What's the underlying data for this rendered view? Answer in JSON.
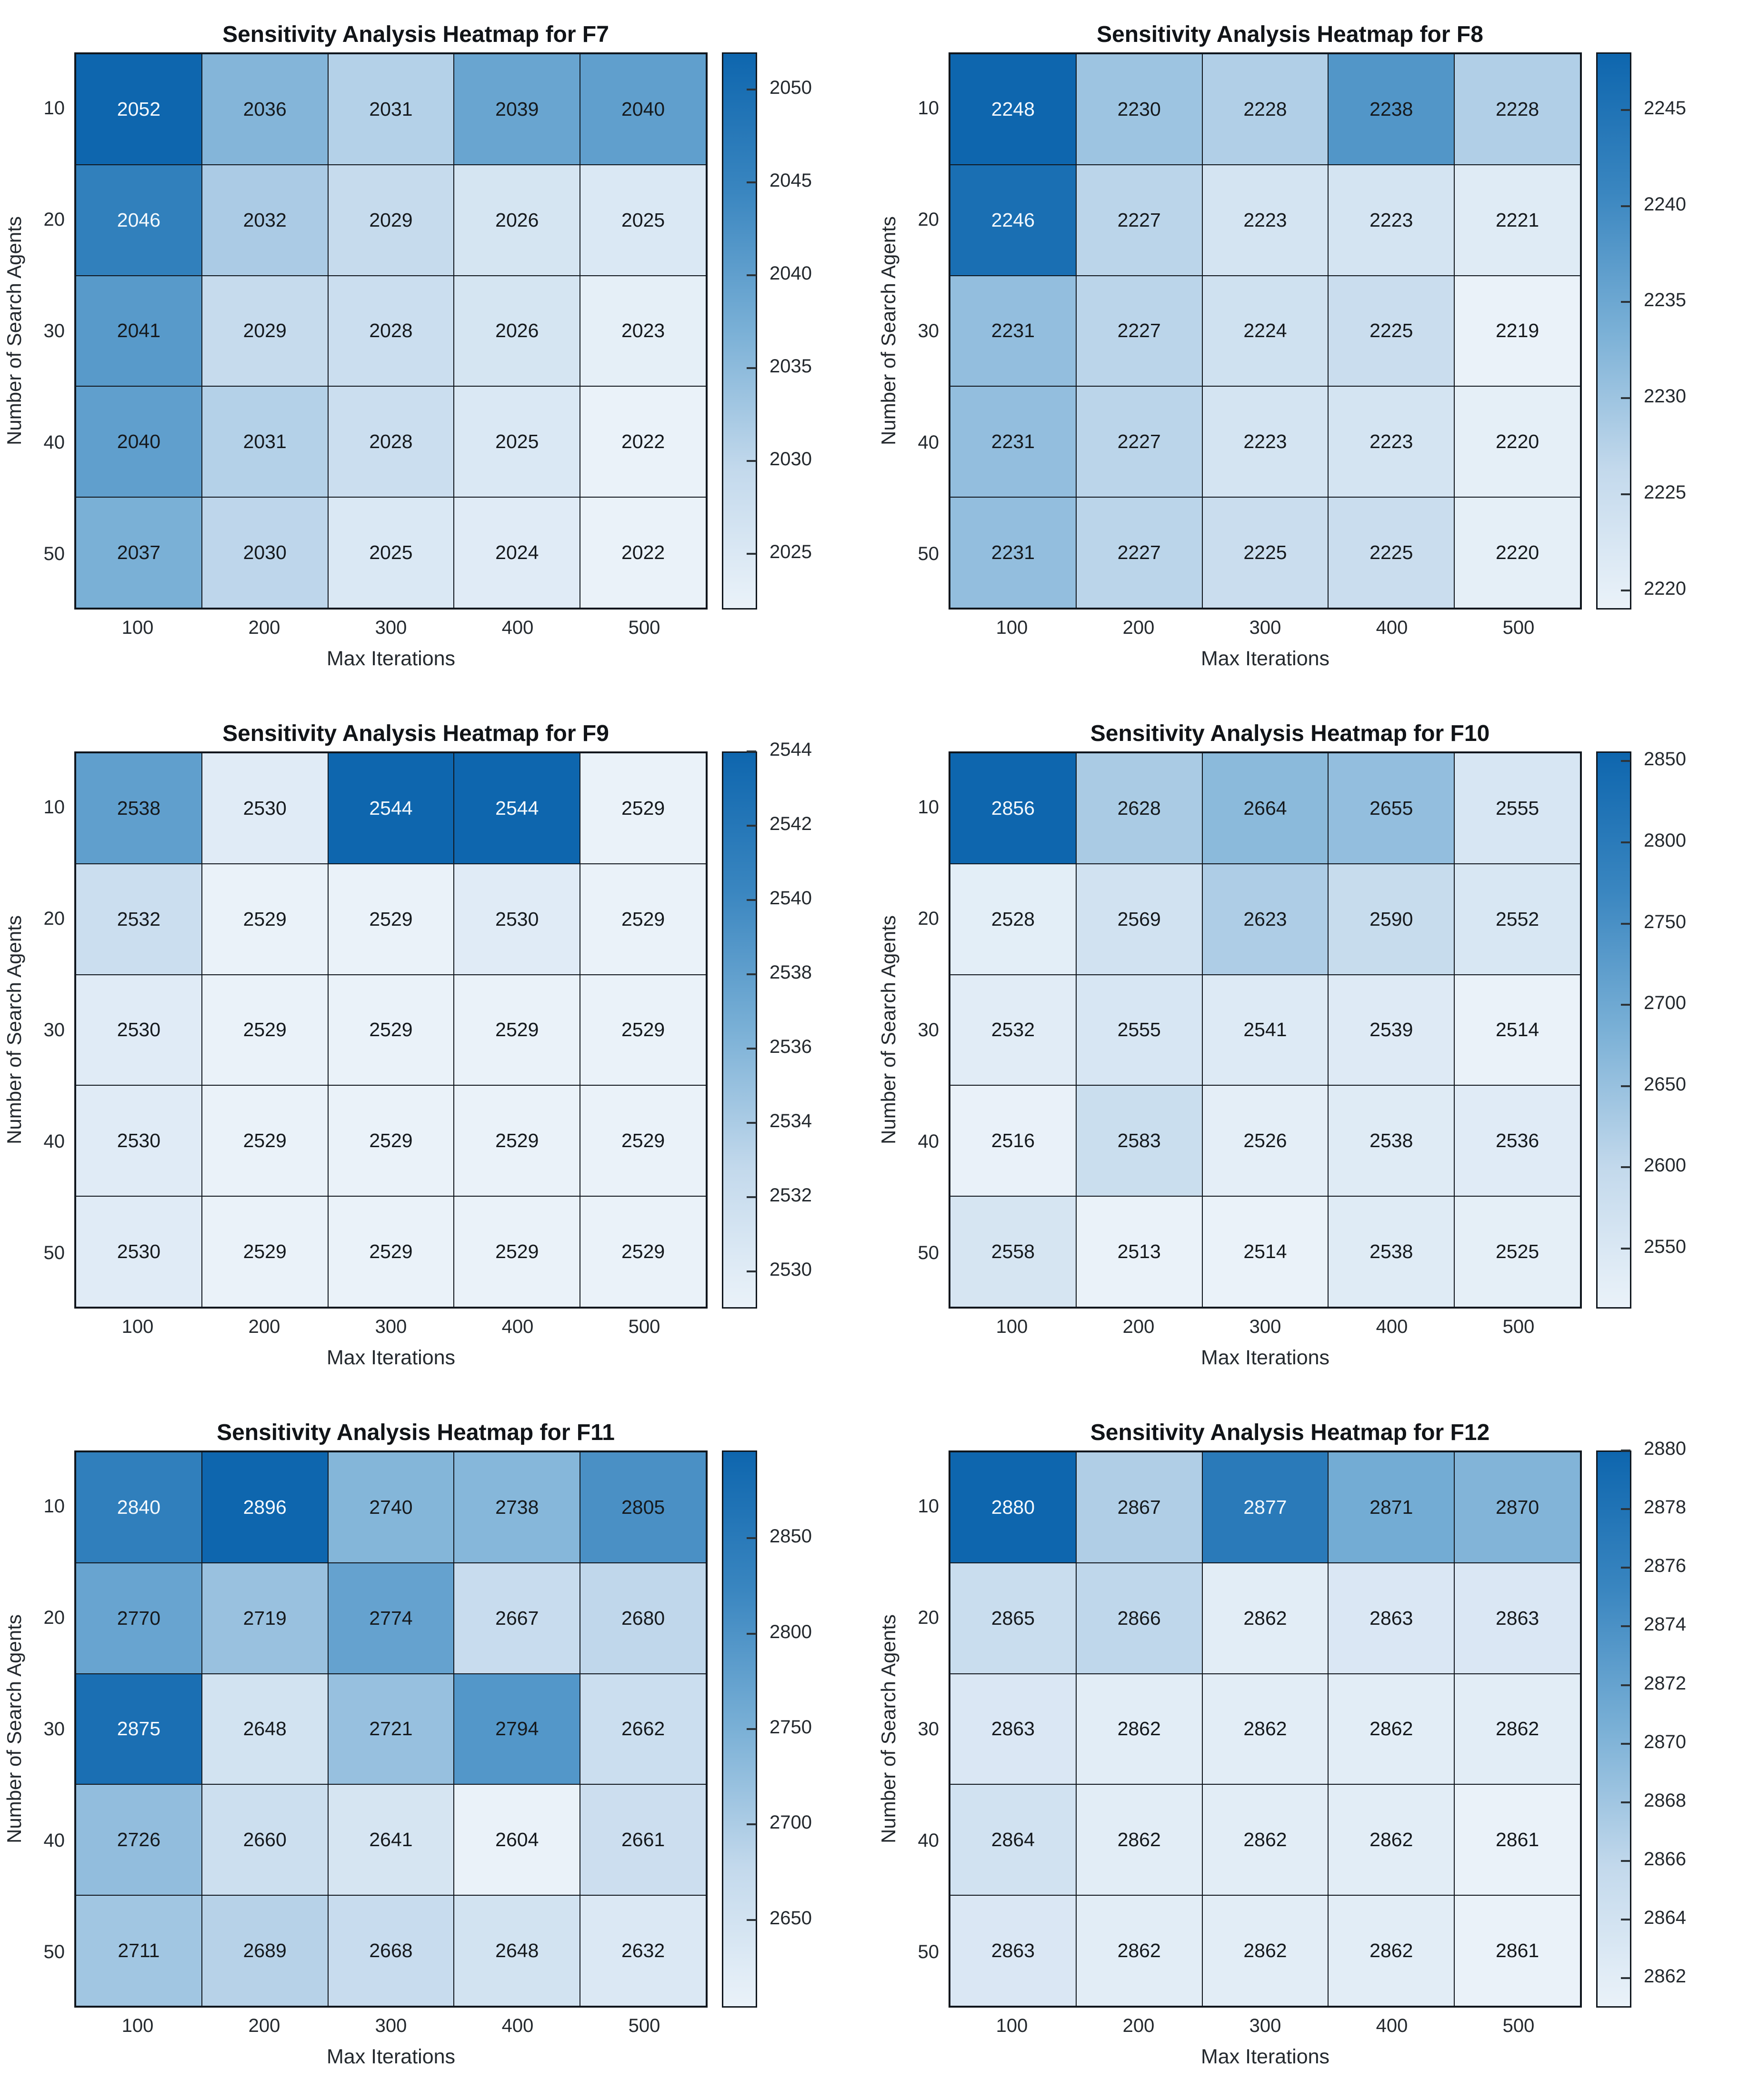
{
  "figure": {
    "background": "#ffffff",
    "colormap": {
      "low": "#eaf2f9",
      "q1": "#c3d9ec",
      "mid": "#7ab0d6",
      "q3": "#3a86c0",
      "high": "#0e66ae",
      "white_text_threshold": 0.75
    },
    "cell_border_color": "#10161d",
    "dark_text_color": "#15191d",
    "light_text_color": "#f4f9fd"
  },
  "chart_data": [
    {
      "type": "heatmap",
      "title": "Sensitivity Analysis Heatmap for F7",
      "xlabel": "Max Iterations",
      "ylabel": "Number of Search Agents",
      "x_categories": [
        "100",
        "200",
        "300",
        "400",
        "500"
      ],
      "y_categories": [
        "10",
        "20",
        "30",
        "40",
        "50"
      ],
      "values": [
        [
          2052,
          2036,
          2031,
          2039,
          2040
        ],
        [
          2046,
          2032,
          2029,
          2026,
          2025
        ],
        [
          2041,
          2029,
          2028,
          2026,
          2023
        ],
        [
          2040,
          2031,
          2028,
          2025,
          2022
        ],
        [
          2037,
          2030,
          2025,
          2024,
          2022
        ]
      ],
      "vmin": 2022,
      "vmax": 2052,
      "colorbar_ticks": [
        2025,
        2030,
        2035,
        2040,
        2045,
        2050
      ],
      "legend_position": "right",
      "grid": true
    },
    {
      "type": "heatmap",
      "title": "Sensitivity Analysis Heatmap for F8",
      "xlabel": "Max Iterations",
      "ylabel": "Number of Search Agents",
      "x_categories": [
        "100",
        "200",
        "300",
        "400",
        "500"
      ],
      "y_categories": [
        "10",
        "20",
        "30",
        "40",
        "50"
      ],
      "values": [
        [
          2248,
          2230,
          2228,
          2238,
          2228
        ],
        [
          2246,
          2227,
          2223,
          2223,
          2221
        ],
        [
          2231,
          2227,
          2224,
          2225,
          2219
        ],
        [
          2231,
          2227,
          2223,
          2223,
          2220
        ],
        [
          2231,
          2227,
          2225,
          2225,
          2220
        ]
      ],
      "vmin": 2219,
      "vmax": 2248,
      "colorbar_ticks": [
        2220,
        2225,
        2230,
        2235,
        2240,
        2245
      ],
      "legend_position": "right",
      "grid": true
    },
    {
      "type": "heatmap",
      "title": "Sensitivity Analysis Heatmap for F9",
      "xlabel": "Max Iterations",
      "ylabel": "Number of Search Agents",
      "x_categories": [
        "100",
        "200",
        "300",
        "400",
        "500"
      ],
      "y_categories": [
        "10",
        "20",
        "30",
        "40",
        "50"
      ],
      "values": [
        [
          2538,
          2530,
          2544,
          2544,
          2529
        ],
        [
          2532,
          2529,
          2529,
          2530,
          2529
        ],
        [
          2530,
          2529,
          2529,
          2529,
          2529
        ],
        [
          2530,
          2529,
          2529,
          2529,
          2529
        ],
        [
          2530,
          2529,
          2529,
          2529,
          2529
        ]
      ],
      "vmin": 2529,
      "vmax": 2544,
      "colorbar_ticks": [
        2530,
        2532,
        2534,
        2536,
        2538,
        2540,
        2542,
        2544
      ],
      "legend_position": "right",
      "grid": true
    },
    {
      "type": "heatmap",
      "title": "Sensitivity Analysis Heatmap for F10",
      "xlabel": "Max Iterations",
      "ylabel": "Number of Search Agents",
      "x_categories": [
        "100",
        "200",
        "300",
        "400",
        "500"
      ],
      "y_categories": [
        "10",
        "20",
        "30",
        "40",
        "50"
      ],
      "values": [
        [
          2856,
          2628,
          2664,
          2655,
          2555
        ],
        [
          2528,
          2569,
          2623,
          2590,
          2552
        ],
        [
          2532,
          2555,
          2541,
          2539,
          2514
        ],
        [
          2516,
          2583,
          2526,
          2538,
          2536
        ],
        [
          2558,
          2513,
          2514,
          2538,
          2525
        ]
      ],
      "vmin": 2513,
      "vmax": 2856,
      "colorbar_ticks": [
        2550,
        2600,
        2650,
        2700,
        2750,
        2800,
        2850
      ],
      "legend_position": "right",
      "grid": true
    },
    {
      "type": "heatmap",
      "title": "Sensitivity Analysis Heatmap for F11",
      "xlabel": "Max Iterations",
      "ylabel": "Number of Search Agents",
      "x_categories": [
        "100",
        "200",
        "300",
        "400",
        "500"
      ],
      "y_categories": [
        "10",
        "20",
        "30",
        "40",
        "50"
      ],
      "values": [
        [
          2840,
          2896,
          2740,
          2738,
          2805
        ],
        [
          2770,
          2719,
          2774,
          2667,
          2680
        ],
        [
          2875,
          2648,
          2721,
          2794,
          2662
        ],
        [
          2726,
          2660,
          2641,
          2604,
          2661
        ],
        [
          2711,
          2689,
          2668,
          2648,
          2632
        ]
      ],
      "vmin": 2604,
      "vmax": 2896,
      "colorbar_ticks": [
        2650,
        2700,
        2750,
        2800,
        2850
      ],
      "legend_position": "right",
      "grid": true
    },
    {
      "type": "heatmap",
      "title": "Sensitivity Analysis Heatmap for F12",
      "xlabel": "Max Iterations",
      "ylabel": "Number of Search Agents",
      "x_categories": [
        "100",
        "200",
        "300",
        "400",
        "500"
      ],
      "y_categories": [
        "10",
        "20",
        "30",
        "40",
        "50"
      ],
      "values": [
        [
          2880,
          2867,
          2877,
          2871,
          2870
        ],
        [
          2865,
          2866,
          2862,
          2863,
          2863
        ],
        [
          2863,
          2862,
          2862,
          2862,
          2862
        ],
        [
          2864,
          2862,
          2862,
          2862,
          2861
        ],
        [
          2863,
          2862,
          2862,
          2862,
          2861
        ]
      ],
      "vmin": 2861,
      "vmax": 2880,
      "colorbar_ticks": [
        2862,
        2864,
        2866,
        2868,
        2870,
        2872,
        2874,
        2876,
        2878,
        2880
      ],
      "legend_position": "right",
      "grid": true
    }
  ]
}
